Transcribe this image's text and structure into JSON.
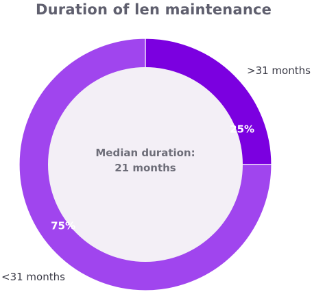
{
  "chart_data": {
    "type": "pie",
    "title": "Duration of len maintenance",
    "slices": [
      {
        "label": ">31 months",
        "value": 25,
        "value_label": "25%",
        "color": "#7b00e0"
      },
      {
        "label": "<31 months",
        "value": 75,
        "value_label": "75%",
        "color": "#a045ee"
      }
    ],
    "center_text": {
      "line1": "Median duration:",
      "line2": "21 months"
    },
    "hole_color": "#f3eff6"
  }
}
